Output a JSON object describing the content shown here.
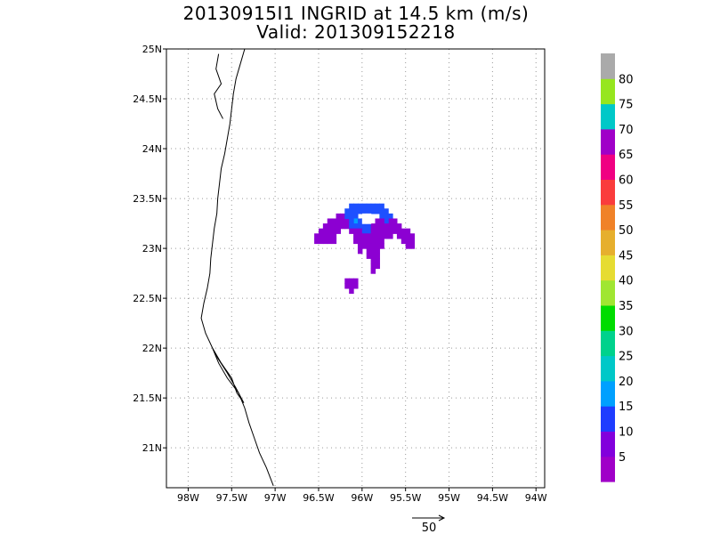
{
  "title_line1": "20130915I1 INGRID at 14.5 km (m/s)",
  "title_line2": "Valid: 201309152218",
  "chart_data": {
    "type": "heatmap",
    "xlim": [
      -98.25,
      -93.9
    ],
    "ylim": [
      20.6,
      25.0
    ],
    "x_ticks": [
      {
        "value": -98.0,
        "label": "98W"
      },
      {
        "value": -97.5,
        "label": "97.5W"
      },
      {
        "value": -97.0,
        "label": "97W"
      },
      {
        "value": -96.5,
        "label": "96.5W"
      },
      {
        "value": -96.0,
        "label": "96W"
      },
      {
        "value": -95.5,
        "label": "95.5W"
      },
      {
        "value": -95.0,
        "label": "95W"
      },
      {
        "value": -94.5,
        "label": "94.5W"
      },
      {
        "value": -94.0,
        "label": "94W"
      }
    ],
    "y_ticks": [
      {
        "value": 21.0,
        "label": "21N"
      },
      {
        "value": 21.5,
        "label": "21.5N"
      },
      {
        "value": 22.0,
        "label": "22N"
      },
      {
        "value": 22.5,
        "label": "22.5N"
      },
      {
        "value": 23.0,
        "label": "23N"
      },
      {
        "value": 23.5,
        "label": "23.5N"
      },
      {
        "value": 24.0,
        "label": "24N"
      },
      {
        "value": 24.5,
        "label": "24.5N"
      },
      {
        "value": 25.0,
        "label": "25N"
      }
    ],
    "grid": true,
    "cell_deg": 0.05,
    "cells": [
      [
        -96.55,
        23.05,
        5
      ],
      [
        -96.5,
        23.05,
        5
      ],
      [
        -96.45,
        23.05,
        5
      ],
      [
        -96.4,
        23.05,
        5
      ],
      [
        -96.35,
        23.05,
        5
      ],
      [
        -96.55,
        23.1,
        5
      ],
      [
        -96.5,
        23.1,
        5
      ],
      [
        -96.45,
        23.1,
        5
      ],
      [
        -96.4,
        23.1,
        5
      ],
      [
        -96.35,
        23.1,
        5
      ],
      [
        -96.5,
        23.15,
        5
      ],
      [
        -96.45,
        23.15,
        5
      ],
      [
        -96.4,
        23.15,
        5
      ],
      [
        -96.35,
        23.15,
        5
      ],
      [
        -96.3,
        23.15,
        5
      ],
      [
        -96.45,
        23.2,
        5
      ],
      [
        -96.4,
        23.2,
        5
      ],
      [
        -96.35,
        23.2,
        5
      ],
      [
        -96.3,
        23.2,
        5
      ],
      [
        -96.25,
        23.2,
        5
      ],
      [
        -96.4,
        23.25,
        5
      ],
      [
        -96.35,
        23.25,
        5
      ],
      [
        -96.3,
        23.25,
        5
      ],
      [
        -96.25,
        23.25,
        5
      ],
      [
        -96.2,
        23.25,
        5
      ],
      [
        -96.3,
        23.3,
        5
      ],
      [
        -96.25,
        23.3,
        5
      ],
      [
        -96.2,
        23.3,
        12
      ],
      [
        -96.15,
        23.3,
        12
      ],
      [
        -96.1,
        23.3,
        12
      ],
      [
        -96.2,
        23.35,
        12
      ],
      [
        -96.15,
        23.35,
        12
      ],
      [
        -96.1,
        23.35,
        12
      ],
      [
        -96.05,
        23.35,
        12
      ],
      [
        -96.0,
        23.35,
        12
      ],
      [
        -95.95,
        23.35,
        12
      ],
      [
        -95.9,
        23.35,
        12
      ],
      [
        -95.85,
        23.35,
        12
      ],
      [
        -95.8,
        23.35,
        12
      ],
      [
        -95.75,
        23.35,
        12
      ],
      [
        -96.15,
        23.4,
        12
      ],
      [
        -96.1,
        23.4,
        12
      ],
      [
        -96.05,
        23.4,
        12
      ],
      [
        -96.0,
        23.4,
        12
      ],
      [
        -95.95,
        23.4,
        12
      ],
      [
        -95.9,
        23.4,
        12
      ],
      [
        -95.85,
        23.4,
        12
      ],
      [
        -95.8,
        23.4,
        12
      ],
      [
        -96.1,
        23.25,
        17
      ],
      [
        -96.05,
        23.25,
        12
      ],
      [
        -96.15,
        23.25,
        12
      ],
      [
        -95.8,
        23.3,
        12
      ],
      [
        -95.75,
        23.3,
        12
      ],
      [
        -95.7,
        23.3,
        12
      ],
      [
        -95.7,
        23.25,
        5
      ],
      [
        -95.65,
        23.25,
        5
      ],
      [
        -95.75,
        23.25,
        12
      ],
      [
        -95.8,
        23.25,
        5
      ],
      [
        -95.85,
        23.25,
        5
      ],
      [
        -96.2,
        23.2,
        5
      ],
      [
        -96.15,
        23.2,
        12
      ],
      [
        -96.1,
        23.2,
        12
      ],
      [
        -96.05,
        23.2,
        12
      ],
      [
        -96.0,
        23.2,
        12
      ],
      [
        -95.95,
        23.2,
        12
      ],
      [
        -95.9,
        23.2,
        5
      ],
      [
        -95.85,
        23.2,
        5
      ],
      [
        -95.8,
        23.2,
        5
      ],
      [
        -95.75,
        23.2,
        5
      ],
      [
        -95.7,
        23.2,
        5
      ],
      [
        -95.65,
        23.2,
        5
      ],
      [
        -95.6,
        23.2,
        5
      ],
      [
        -96.15,
        23.15,
        5
      ],
      [
        -96.1,
        23.15,
        5
      ],
      [
        -96.05,
        23.15,
        5
      ],
      [
        -96.0,
        23.15,
        12
      ],
      [
        -95.95,
        23.15,
        12
      ],
      [
        -95.9,
        23.15,
        5
      ],
      [
        -95.85,
        23.15,
        5
      ],
      [
        -95.8,
        23.15,
        5
      ],
      [
        -95.75,
        23.15,
        5
      ],
      [
        -95.7,
        23.15,
        5
      ],
      [
        -95.65,
        23.15,
        5
      ],
      [
        -95.6,
        23.15,
        5
      ],
      [
        -95.55,
        23.15,
        5
      ],
      [
        -95.5,
        23.15,
        5
      ],
      [
        -96.1,
        23.1,
        5
      ],
      [
        -96.05,
        23.1,
        5
      ],
      [
        -96.0,
        23.1,
        5
      ],
      [
        -95.95,
        23.1,
        5
      ],
      [
        -95.9,
        23.1,
        5
      ],
      [
        -95.85,
        23.1,
        5
      ],
      [
        -95.8,
        23.1,
        5
      ],
      [
        -95.75,
        23.1,
        5
      ],
      [
        -95.7,
        23.1,
        5
      ],
      [
        -95.6,
        23.1,
        5
      ],
      [
        -95.55,
        23.1,
        5
      ],
      [
        -95.5,
        23.1,
        5
      ],
      [
        -95.45,
        23.1,
        5
      ],
      [
        -96.1,
        23.05,
        5
      ],
      [
        -96.05,
        23.05,
        5
      ],
      [
        -96.0,
        23.05,
        5
      ],
      [
        -95.95,
        23.05,
        5
      ],
      [
        -95.9,
        23.05,
        5
      ],
      [
        -95.85,
        23.05,
        5
      ],
      [
        -95.8,
        23.05,
        5
      ],
      [
        -95.55,
        23.05,
        5
      ],
      [
        -95.5,
        23.05,
        5
      ],
      [
        -95.45,
        23.05,
        5
      ],
      [
        -96.05,
        23.0,
        5
      ],
      [
        -96.0,
        23.0,
        5
      ],
      [
        -95.95,
        23.0,
        5
      ],
      [
        -95.9,
        23.0,
        5
      ],
      [
        -95.85,
        23.0,
        5
      ],
      [
        -95.8,
        23.0,
        5
      ],
      [
        -95.5,
        23.0,
        5
      ],
      [
        -95.45,
        23.0,
        5
      ],
      [
        -96.05,
        22.95,
        5
      ],
      [
        -95.95,
        22.95,
        5
      ],
      [
        -95.9,
        22.95,
        5
      ],
      [
        -95.85,
        22.95,
        5
      ],
      [
        -95.95,
        22.9,
        5
      ],
      [
        -95.9,
        22.9,
        5
      ],
      [
        -95.85,
        22.9,
        5
      ],
      [
        -95.9,
        22.85,
        5
      ],
      [
        -95.85,
        22.85,
        5
      ],
      [
        -95.9,
        22.8,
        5
      ],
      [
        -95.85,
        22.8,
        5
      ],
      [
        -95.9,
        22.75,
        5
      ],
      [
        -96.2,
        22.65,
        5
      ],
      [
        -96.15,
        22.65,
        5
      ],
      [
        -96.1,
        22.65,
        5
      ],
      [
        -96.2,
        22.6,
        5
      ],
      [
        -96.15,
        22.6,
        5
      ],
      [
        -96.1,
        22.6,
        5
      ],
      [
        -96.15,
        22.55,
        5
      ]
    ],
    "cells_white": [
      [
        -96.0,
        23.3
      ],
      [
        -95.95,
        23.3
      ],
      [
        -96.0,
        23.25
      ],
      [
        -95.95,
        23.25
      ]
    ],
    "coastline": [
      [
        -97.35,
        25.0
      ],
      [
        -97.4,
        24.85
      ],
      [
        -97.45,
        24.7
      ],
      [
        -97.48,
        24.55
      ],
      [
        -97.5,
        24.4
      ],
      [
        -97.52,
        24.25
      ],
      [
        -97.55,
        24.1
      ],
      [
        -97.58,
        23.95
      ],
      [
        -97.62,
        23.8
      ],
      [
        -97.64,
        23.65
      ],
      [
        -97.66,
        23.5
      ],
      [
        -97.67,
        23.35
      ],
      [
        -97.7,
        23.2
      ],
      [
        -97.72,
        23.05
      ],
      [
        -97.74,
        22.9
      ],
      [
        -97.75,
        22.75
      ],
      [
        -97.78,
        22.6
      ],
      [
        -97.82,
        22.45
      ],
      [
        -97.85,
        22.3
      ],
      [
        -97.8,
        22.15
      ],
      [
        -97.72,
        22.0
      ],
      [
        -97.65,
        21.85
      ],
      [
        -97.55,
        21.7
      ],
      [
        -97.42,
        21.55
      ],
      [
        -97.35,
        21.4
      ],
      [
        -97.3,
        21.25
      ],
      [
        -97.24,
        21.1
      ],
      [
        -97.18,
        20.95
      ],
      [
        -97.1,
        20.8
      ],
      [
        -97.02,
        20.62
      ]
    ],
    "coastline_inner": [
      [
        -97.65,
        24.95
      ],
      [
        -97.68,
        24.8
      ],
      [
        -97.62,
        24.65
      ],
      [
        -97.7,
        24.55
      ],
      [
        -97.66,
        24.4
      ],
      [
        -97.6,
        24.3
      ]
    ],
    "lagoon": [
      [
        -97.72,
        22.0
      ],
      [
        -97.62,
        21.85
      ],
      [
        -97.5,
        21.7
      ],
      [
        -97.44,
        21.55
      ],
      [
        -97.36,
        21.45
      ],
      [
        -97.45,
        21.6
      ],
      [
        -97.55,
        21.75
      ],
      [
        -97.66,
        21.9
      ],
      [
        -97.72,
        22.0
      ]
    ],
    "colorbar": {
      "levels": [
        {
          "label": "",
          "color": "#a000c8"
        },
        {
          "label": "5",
          "color": "#8200dc"
        },
        {
          "label": "10",
          "color": "#1e3cff"
        },
        {
          "label": "15",
          "color": "#00a0ff"
        },
        {
          "label": "20",
          "color": "#00c8c8"
        },
        {
          "label": "25",
          "color": "#00d28c"
        },
        {
          "label": "30",
          "color": "#00dc00"
        },
        {
          "label": "35",
          "color": "#a0e632"
        },
        {
          "label": "40",
          "color": "#e6dc32"
        },
        {
          "label": "45",
          "color": "#e6af2d"
        },
        {
          "label": "50",
          "color": "#f08228"
        },
        {
          "label": "55",
          "color": "#fa3c3c"
        },
        {
          "label": "60",
          "color": "#f00082"
        },
        {
          "label": "65",
          "color": "#a000c8"
        },
        {
          "label": "70",
          "color": "#00c8c8"
        },
        {
          "label": "75",
          "color": "#96e61e"
        },
        {
          "label": "80",
          "color": "#aaaaaa"
        }
      ],
      "value_colors": {
        "5": "#8c00d2",
        "12": "#1e50ff",
        "17": "#00a0ff"
      }
    },
    "reference_vector": {
      "label": "50"
    }
  }
}
